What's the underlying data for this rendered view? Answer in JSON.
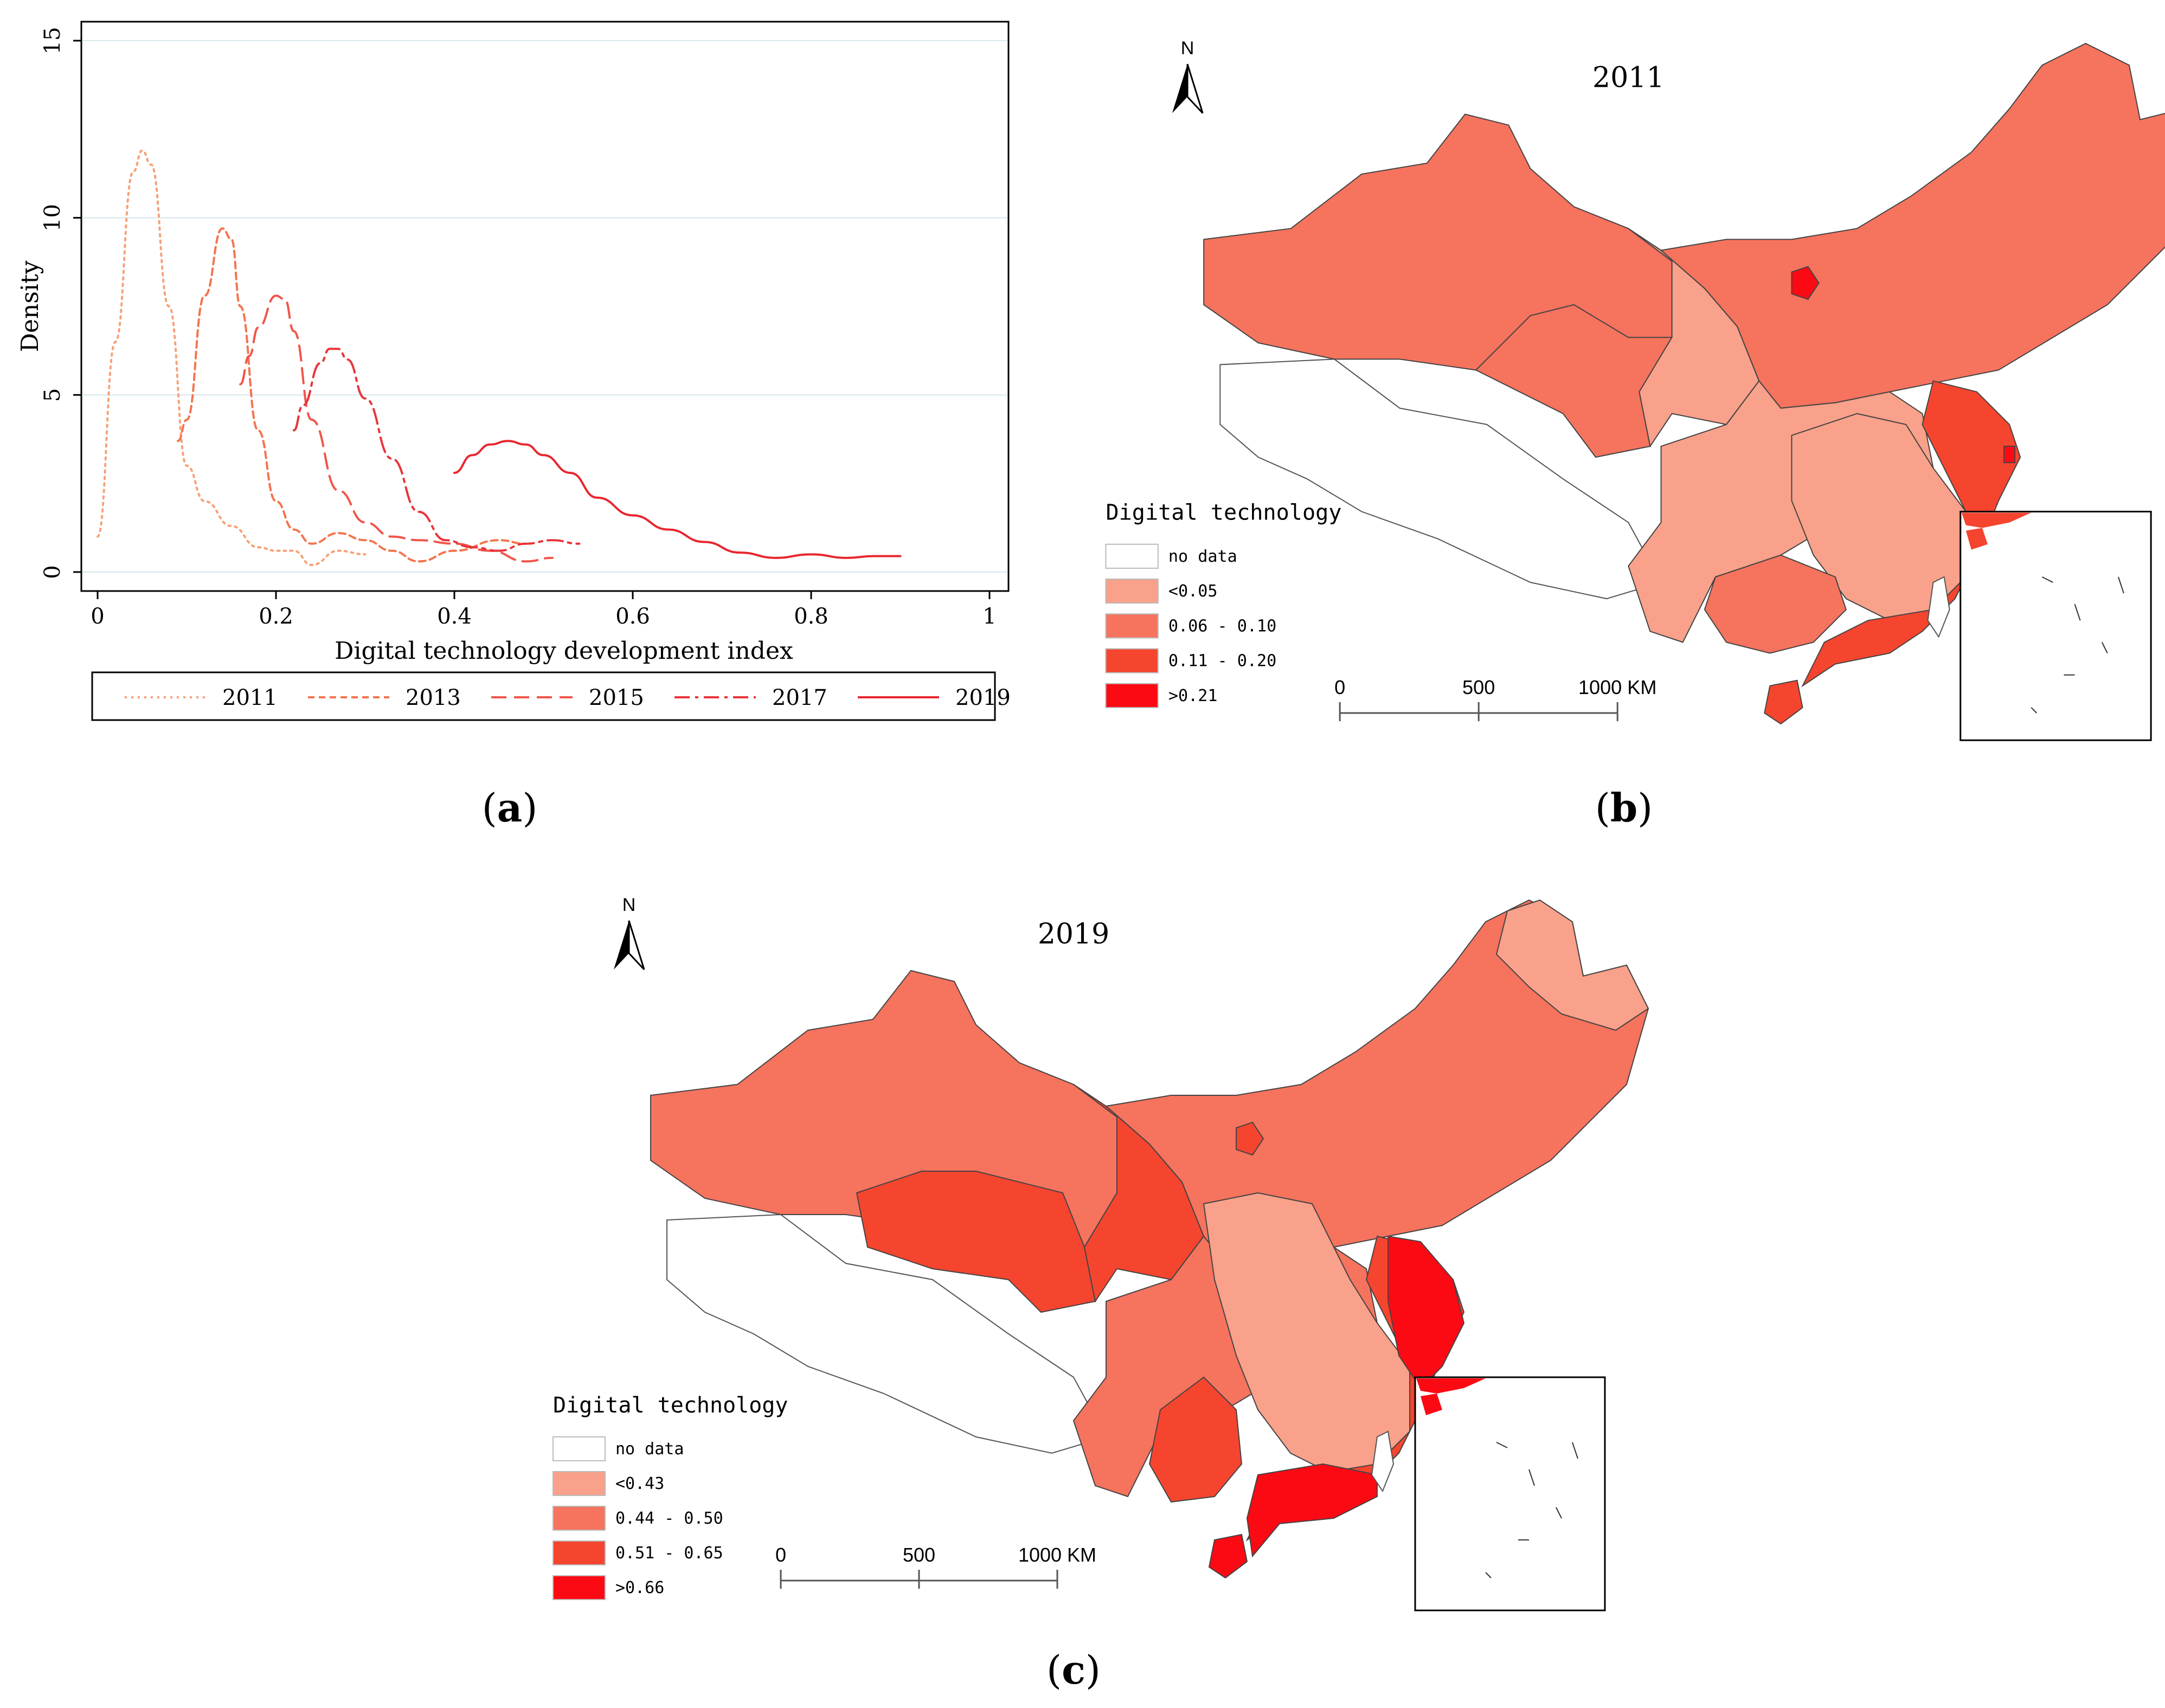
{
  "panels": {
    "a": "a",
    "b": "b",
    "c": "c"
  },
  "chart_data": {
    "type": "line",
    "title": "",
    "xlabel": "Digital technology development index",
    "ylabel": "Density",
    "xlim": [
      0,
      1
    ],
    "ylim": [
      0,
      15
    ],
    "xticks": [
      "0",
      "0.2",
      "0.4",
      "0.6",
      "0.8",
      "1"
    ],
    "xtick_values": [
      0,
      0.2,
      0.4,
      0.6,
      0.8,
      1
    ],
    "yticks": [
      "0",
      "5",
      "10",
      "15"
    ],
    "ytick_values": [
      0,
      5,
      10,
      15
    ],
    "grid": "horizontal",
    "legend_position": "bottom",
    "series": [
      {
        "name": "2011",
        "color": "#f6a178",
        "dash": "dotted",
        "x": [
          0.0,
          0.02,
          0.04,
          0.05,
          0.06,
          0.08,
          0.1,
          0.12,
          0.15,
          0.18,
          0.2,
          0.22,
          0.24,
          0.27,
          0.3
        ],
        "y": [
          1.0,
          6.5,
          11.3,
          11.9,
          11.5,
          7.5,
          3.0,
          2.0,
          1.3,
          0.7,
          0.6,
          0.6,
          0.2,
          0.6,
          0.5
        ]
      },
      {
        "name": "2013",
        "color": "#f4744d",
        "dash": "short-dash",
        "x": [
          0.09,
          0.1,
          0.12,
          0.14,
          0.15,
          0.16,
          0.18,
          0.2,
          0.22,
          0.24,
          0.27,
          0.3,
          0.33,
          0.36,
          0.4,
          0.45,
          0.48
        ],
        "y": [
          3.7,
          4.3,
          7.8,
          9.7,
          9.4,
          7.5,
          4.0,
          2.0,
          1.2,
          0.8,
          1.1,
          0.9,
          0.6,
          0.3,
          0.6,
          0.9,
          0.8
        ]
      },
      {
        "name": "2015",
        "color": "#f0554a",
        "dash": "dash",
        "x": [
          0.16,
          0.17,
          0.18,
          0.2,
          0.21,
          0.22,
          0.24,
          0.27,
          0.3,
          0.33,
          0.36,
          0.4,
          0.44,
          0.48,
          0.51
        ],
        "y": [
          5.3,
          6.1,
          6.9,
          7.8,
          7.7,
          6.8,
          4.3,
          2.3,
          1.4,
          1.0,
          0.9,
          0.8,
          0.6,
          0.3,
          0.4
        ]
      },
      {
        "name": "2017",
        "color": "#e8343a",
        "dash": "dash-dot",
        "x": [
          0.22,
          0.23,
          0.25,
          0.26,
          0.27,
          0.28,
          0.3,
          0.33,
          0.36,
          0.39,
          0.42,
          0.45,
          0.48,
          0.51,
          0.54
        ],
        "y": [
          4.0,
          4.7,
          5.9,
          6.3,
          6.3,
          6.0,
          4.9,
          3.2,
          1.7,
          0.9,
          0.7,
          0.6,
          0.8,
          0.9,
          0.8
        ]
      },
      {
        "name": "2019",
        "color": "#e8262e",
        "dash": "solid",
        "x": [
          0.4,
          0.42,
          0.44,
          0.46,
          0.48,
          0.5,
          0.53,
          0.56,
          0.6,
          0.64,
          0.68,
          0.72,
          0.76,
          0.8,
          0.84,
          0.87,
          0.9
        ],
        "y": [
          2.8,
          3.3,
          3.6,
          3.7,
          3.6,
          3.3,
          2.8,
          2.1,
          1.6,
          1.2,
          0.85,
          0.55,
          0.4,
          0.5,
          0.4,
          0.45,
          0.45
        ]
      }
    ]
  },
  "maps": [
    {
      "id": "b",
      "title": "2011",
      "north_label": "N",
      "legend": {
        "title": "Digital technology",
        "items": [
          {
            "label": "no data",
            "color": "#ffffff"
          },
          {
            "label": "<0.05",
            "color": "#f9a18a"
          },
          {
            "label": "0.06  -  0.10",
            "color": "#f6735e"
          },
          {
            "label": "0.11  -  0.20",
            "color": "#f5452f"
          },
          {
            "label": ">0.21",
            "color": "#fb0a14"
          }
        ]
      },
      "scale_bar": {
        "labels": [
          "0",
          "500",
          "1000 KM"
        ]
      }
    },
    {
      "id": "c",
      "title": "2019",
      "north_label": "N",
      "legend": {
        "title": "Digital technology",
        "items": [
          {
            "label": "no data",
            "color": "#ffffff"
          },
          {
            "label": "<0.43",
            "color": "#f9a18a"
          },
          {
            "label": "0.44  -  0.50",
            "color": "#f6735e"
          },
          {
            "label": "0.51  -  0.65",
            "color": "#f5452f"
          },
          {
            "label": ">0.66",
            "color": "#fb0a14"
          }
        ]
      },
      "scale_bar": {
        "labels": [
          "0",
          "500",
          "1000 KM"
        ]
      }
    }
  ]
}
